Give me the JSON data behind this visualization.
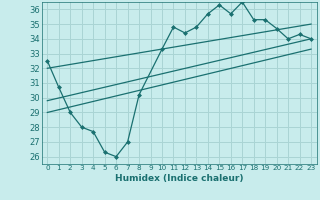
{
  "xlabel": "Humidex (Indice chaleur)",
  "background_color": "#c8ecec",
  "grid_color": "#aad4d4",
  "line_color": "#1a7070",
  "xlim": [
    -0.5,
    23.5
  ],
  "ylim": [
    25.5,
    36.5
  ],
  "yticks": [
    26,
    27,
    28,
    29,
    30,
    31,
    32,
    33,
    34,
    35,
    36
  ],
  "xticks": [
    0,
    1,
    2,
    3,
    4,
    5,
    6,
    7,
    8,
    9,
    10,
    11,
    12,
    13,
    14,
    15,
    16,
    17,
    18,
    19,
    20,
    21,
    22,
    23
  ],
  "curve1_x": [
    0,
    1,
    2,
    3,
    4,
    5,
    6,
    7,
    8,
    10,
    11,
    12,
    13,
    14,
    15,
    16,
    17,
    18,
    19,
    20,
    21,
    22,
    23
  ],
  "curve1_y": [
    32.5,
    30.7,
    29.0,
    28.0,
    27.7,
    26.3,
    26.0,
    27.0,
    30.2,
    33.3,
    34.8,
    34.4,
    34.8,
    35.7,
    36.3,
    35.7,
    36.5,
    35.3,
    35.3,
    34.7,
    34.0,
    34.3,
    34.0
  ],
  "line1_x": [
    0,
    23
  ],
  "line1_y": [
    32.0,
    35.0
  ],
  "line2_x": [
    0,
    23
  ],
  "line2_y": [
    29.8,
    34.0
  ],
  "line3_x": [
    0,
    23
  ],
  "line3_y": [
    29.0,
    33.3
  ]
}
